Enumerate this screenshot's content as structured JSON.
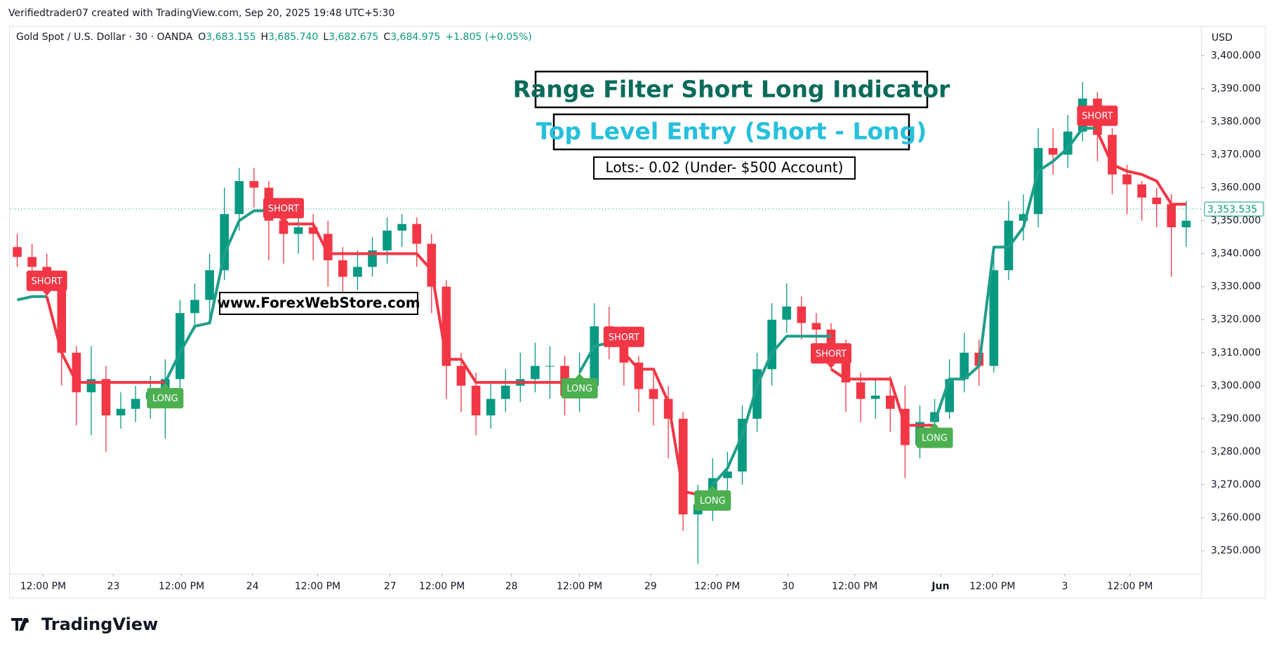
{
  "top_note": "Verifiedtrader07 created with TradingView.com, Sep 20, 2025 19:48 UTC+5:30",
  "brand": "TradingView",
  "chart_data": {
    "type": "candlestick",
    "symbol": "Gold Spot / U.S. Dollar · 30 · OANDA",
    "ohlc_legend": [
      {
        "label": "O",
        "value": "3,683.155"
      },
      {
        "label": "H",
        "value": "3,685.740"
      },
      {
        "label": "L",
        "value": "3,682.675"
      },
      {
        "label": "C",
        "value": "3,684.975"
      }
    ],
    "change": "+1.805 (+0.05%)",
    "currency": "USD",
    "title": "Range Filter Short Long Indicator",
    "subtitle": "Top Level Entry (Short - Long)",
    "annotations": [
      "Lots:- 0.02 (Under- $500 Account)",
      "www.ForexWebStore.com"
    ],
    "xlim": [
      -0.5,
      80
    ],
    "xticks": [
      {
        "value": 1.75,
        "label": "12:00 PM"
      },
      {
        "value": 6.5,
        "label": "23"
      },
      {
        "value": 11.1,
        "label": "12:00 PM"
      },
      {
        "value": 15.9,
        "label": "24"
      },
      {
        "value": 20.3,
        "label": "12:00 PM"
      },
      {
        "value": 25.2,
        "label": "27"
      },
      {
        "value": 28.7,
        "label": "12:00 PM"
      },
      {
        "value": 33.4,
        "label": "28"
      },
      {
        "value": 38.0,
        "label": "12:00 PM"
      },
      {
        "value": 42.8,
        "label": "29"
      },
      {
        "value": 47.3,
        "label": "12:00 PM"
      },
      {
        "value": 52.1,
        "label": "30"
      },
      {
        "value": 56.6,
        "label": "12:00 PM"
      },
      {
        "value": 62.4,
        "label": "Jun"
      },
      {
        "value": 65.9,
        "label": "12:00 PM"
      },
      {
        "value": 70.8,
        "label": "3"
      },
      {
        "value": 75.2,
        "label": "12:00 PM"
      }
    ],
    "ylim": [
      3243,
      3409
    ],
    "yticks": [
      {
        "value": 3250,
        "label": "3,250.000"
      },
      {
        "value": 3260,
        "label": "3,260.000"
      },
      {
        "value": 3270,
        "label": "3,270.000"
      },
      {
        "value": 3280,
        "label": "3,280.000"
      },
      {
        "value": 3290,
        "label": "3,290.000"
      },
      {
        "value": 3300,
        "label": "3,300.000"
      },
      {
        "value": 3310,
        "label": "3,310.000"
      },
      {
        "value": 3320,
        "label": "3,320.000"
      },
      {
        "value": 3330,
        "label": "3,330.000"
      },
      {
        "value": 3340,
        "label": "3,340.000"
      },
      {
        "value": 3350,
        "label": "3,350.000"
      },
      {
        "value": 3360,
        "label": "3,360.000"
      },
      {
        "value": 3370,
        "label": "3,370.000"
      },
      {
        "value": 3380,
        "label": "3,380.000"
      },
      {
        "value": 3390,
        "label": "3,390.000"
      },
      {
        "value": 3400,
        "label": "3,400.000"
      }
    ],
    "grid": false,
    "up_color": "#089981",
    "down_color": "#f23645",
    "open": [
      3342,
      3339,
      3336,
      3330,
      3310,
      3298,
      3302,
      3291,
      3293,
      3296,
      3298,
      3302,
      3322,
      3326,
      3335,
      3352,
      3362,
      3360,
      3350,
      3346,
      3348,
      3346,
      3338,
      3333,
      3336,
      3341,
      3347,
      3349,
      3343,
      3330,
      3306,
      3300,
      3291,
      3296,
      3300,
      3302,
      3306,
      3306,
      3297,
      3300,
      3318,
      3316,
      3307,
      3299,
      3296,
      3290,
      3261,
      3264,
      3272,
      3274,
      3290,
      3305,
      3320,
      3324,
      3319,
      3317,
      3312,
      3301,
      3296,
      3297,
      3293,
      3282,
      3289,
      3292,
      3302,
      3310,
      3306,
      3335,
      3350,
      3352,
      3372,
      3370,
      3377,
      3387,
      3376,
      3364,
      3361,
      3357,
      3355,
      3348
    ],
    "high": [
      3346,
      3343,
      3340,
      3333,
      3312,
      3312,
      3306,
      3298,
      3300,
      3303,
      3308,
      3326,
      3331,
      3340,
      3360,
      3366,
      3366,
      3362,
      3355,
      3353,
      3352,
      3350,
      3342,
      3341,
      3345,
      3351,
      3352,
      3351,
      3346,
      3332,
      3310,
      3304,
      3301,
      3305,
      3310,
      3313,
      3312,
      3309,
      3310,
      3325,
      3324,
      3318,
      3309,
      3304,
      3300,
      3292,
      3270,
      3278,
      3280,
      3294,
      3310,
      3325,
      3331,
      3327,
      3322,
      3319,
      3314,
      3304,
      3302,
      3303,
      3300,
      3294,
      3296,
      3308,
      3316,
      3314,
      3340,
      3356,
      3358,
      3378,
      3378,
      3382,
      3392,
      3389,
      3378,
      3367,
      3362,
      3360,
      3358,
      3356
    ],
    "low": [
      3336,
      3332,
      3326,
      3300,
      3288,
      3285,
      3280,
      3287,
      3289,
      3290,
      3284,
      3298,
      3317,
      3320,
      3332,
      3347,
      3354,
      3338,
      3337,
      3340,
      3338,
      3330,
      3326,
      3329,
      3333,
      3337,
      3342,
      3336,
      3322,
      3296,
      3292,
      3285,
      3287,
      3292,
      3295,
      3298,
      3296,
      3291,
      3292,
      3297,
      3308,
      3300,
      3292,
      3288,
      3278,
      3256,
      3246,
      3259,
      3266,
      3270,
      3286,
      3300,
      3316,
      3314,
      3312,
      3305,
      3292,
      3289,
      3290,
      3286,
      3272,
      3278,
      3285,
      3290,
      3298,
      3300,
      3304,
      3332,
      3344,
      3348,
      3364,
      3366,
      3374,
      3368,
      3358,
      3352,
      3350,
      3348,
      3333,
      3342
    ],
    "close": [
      3339,
      3336,
      3330,
      3310,
      3298,
      3302,
      3291,
      3293,
      3296,
      3298,
      3302,
      3322,
      3326,
      3335,
      3352,
      3362,
      3360,
      3350,
      3346,
      3348,
      3346,
      3338,
      3333,
      3336,
      3341,
      3347,
      3349,
      3343,
      3330,
      3306,
      3300,
      3291,
      3296,
      3300,
      3302,
      3306,
      3306,
      3297,
      3300,
      3318,
      3316,
      3307,
      3299,
      3296,
      3290,
      3261,
      3264,
      3272,
      3274,
      3290,
      3305,
      3320,
      3324,
      3319,
      3317,
      3312,
      3301,
      3296,
      3297,
      3293,
      3282,
      3289,
      3292,
      3302,
      3310,
      3306,
      3335,
      3350,
      3352,
      3372,
      3370,
      3377,
      3387,
      3376,
      3364,
      3361,
      3357,
      3355,
      3348,
      3350
    ],
    "filter": [
      {
        "color": "#1f9e89",
        "values": [
          3326,
          3327,
          3327,
          null,
          null,
          null,
          null,
          null,
          null,
          null,
          3301,
          3310,
          3318,
          3319,
          3340,
          3350,
          3353,
          3353,
          3353,
          null,
          null,
          null,
          null,
          null,
          null,
          null,
          null,
          null,
          null,
          null,
          null,
          null,
          null,
          null,
          null,
          null,
          null,
          null,
          3304,
          3312,
          3313,
          3313,
          null,
          null,
          null,
          null,
          null,
          3270,
          3275,
          3285,
          3300,
          3310,
          3315,
          3315,
          3315,
          3315,
          null,
          null,
          null,
          null,
          null,
          null,
          3289,
          3302,
          3302,
          3306,
          3342,
          3342,
          3348,
          3365,
          3368,
          3372,
          3378,
          3378,
          null,
          null,
          null,
          null,
          null,
          null
        ]
      },
      {
        "color": "#f23645",
        "values": [
          null,
          null,
          3327,
          3310,
          3301,
          3301,
          3301,
          3301,
          3301,
          3301,
          3301,
          null,
          null,
          null,
          null,
          null,
          null,
          null,
          3349,
          3349,
          3349,
          3340,
          3340,
          3340,
          3340,
          3340,
          3340,
          3340,
          3335,
          3308,
          3308,
          3301,
          3301,
          3301,
          3301,
          3301,
          3301,
          3301,
          3301,
          null,
          null,
          3310,
          3305,
          3305,
          3295,
          3268,
          3267,
          3267,
          null,
          null,
          null,
          null,
          null,
          null,
          null,
          3305,
          3302,
          3302,
          3302,
          3302,
          3288,
          3288,
          3288,
          null,
          null,
          null,
          null,
          null,
          null,
          null,
          null,
          null,
          null,
          3377,
          3367,
          3365,
          3364,
          3362,
          3355,
          3355
        ]
      }
    ],
    "signals": [
      {
        "label": "SHORT",
        "index": 2
      },
      {
        "label": "LONG",
        "index": 10
      },
      {
        "label": "SHORT",
        "index": 18
      },
      {
        "label": "LONG",
        "index": 38
      },
      {
        "label": "SHORT",
        "index": 41
      },
      {
        "label": "LONG",
        "index": 47
      },
      {
        "label": "SHORT",
        "index": 55
      },
      {
        "label": "LONG",
        "index": 62
      },
      {
        "label": "SHORT",
        "index": 73
      }
    ],
    "last_price": {
      "value": 3353.535,
      "label": "3,353.535"
    }
  }
}
